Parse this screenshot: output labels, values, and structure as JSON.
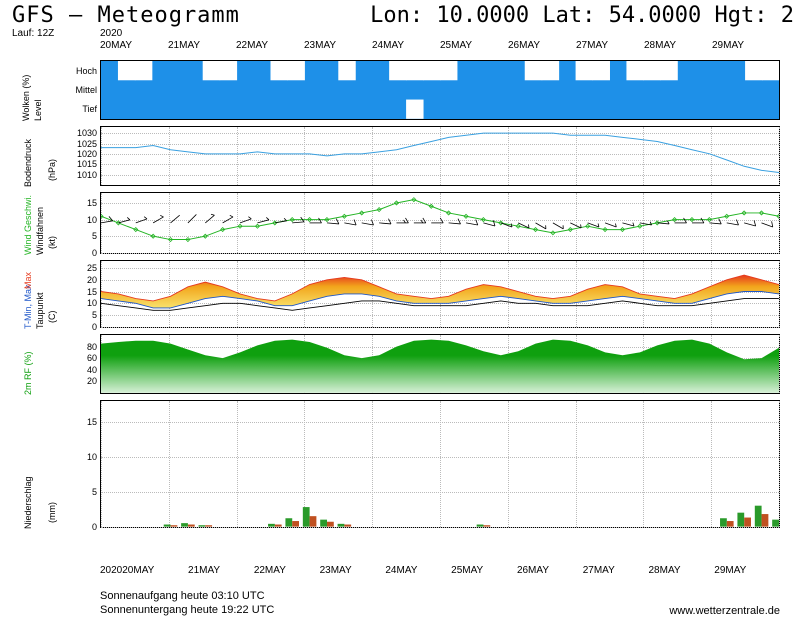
{
  "header": {
    "title": "GFS – Meteogramm",
    "coords": "Lon: 10.0000 Lat: 54.0000 Hgt: 2",
    "run": "Lauf: 12Z"
  },
  "year": "2020",
  "dates": [
    "20MAY",
    "21MAY",
    "22MAY",
    "23MAY",
    "24MAY",
    "25MAY",
    "26MAY",
    "27MAY",
    "28MAY",
    "29MAY"
  ],
  "footer": {
    "sunrise": "Sonnenaufgang heute 03:10 UTC",
    "sunset": "Sonnenuntergang heute 19:22 UTC",
    "credit": "www.wetterzentrale.de"
  },
  "styling": {
    "bg": "#ffffff",
    "grid": "#bbbbbb",
    "axis": "#000000",
    "cloud_bg": "#1e90e8",
    "cloud_fg": "#ffffff",
    "pressure_line": "#3aa0e0",
    "wind_line": "#22b422",
    "wind_barb": "#000000",
    "temp_max": "#e63a1e",
    "temp_min": "#1e56c8",
    "temp_line": "#000000",
    "temp_fill_top": "#f2a61c",
    "temp_fill_bot": "#f9e26b",
    "rh_fill_dark": "#0fa00f",
    "rh_fill_light": "#d6f0d6",
    "precip_bar1": "#c05020",
    "precip_bar2": "#2a9a2a",
    "tick_font": 9,
    "label_font": 9
  },
  "panels": {
    "clouds": {
      "type": "heatmap",
      "levels": [
        "Hoch",
        "Mittel",
        "Tief"
      ],
      "ylabel_outer": "Wolken (%)",
      "ylabel_inner": "Level",
      "data": [
        [
          90,
          60,
          40,
          70,
          95,
          80,
          30,
          50,
          85,
          95,
          40,
          60,
          80,
          70,
          55,
          85,
          70,
          40,
          30,
          60,
          55,
          70,
          85,
          95,
          70,
          40,
          55,
          85,
          65,
          55,
          70,
          40,
          30,
          50,
          70,
          85,
          95,
          80,
          60,
          40
        ],
        [
          95,
          95,
          90,
          95,
          95,
          90,
          80,
          85,
          95,
          95,
          95,
          95,
          95,
          95,
          80,
          95,
          95,
          85,
          70,
          90,
          95,
          95,
          95,
          95,
          95,
          85,
          95,
          95,
          95,
          90,
          95,
          75,
          80,
          85,
          90,
          95,
          95,
          95,
          85,
          80
        ],
        [
          95,
          95,
          95,
          95,
          95,
          95,
          90,
          95,
          95,
          95,
          80,
          90,
          95,
          95,
          95,
          95,
          95,
          80,
          50,
          95,
          95,
          95,
          95,
          95,
          95,
          95,
          95,
          95,
          95,
          95,
          95,
          95,
          95,
          95,
          95,
          95,
          95,
          95,
          95,
          95
        ]
      ]
    },
    "pressure": {
      "type": "line",
      "ylabel": "Bodendruck",
      "unit": "(hPa)",
      "ylim": [
        1005,
        1033
      ],
      "yticks": [
        1010,
        1015,
        1020,
        1025,
        1030
      ],
      "values": [
        1023,
        1023,
        1023,
        1024,
        1022,
        1021,
        1020,
        1020,
        1020,
        1021,
        1020,
        1020,
        1020,
        1019,
        1020,
        1020,
        1021,
        1022,
        1024,
        1026,
        1028,
        1029,
        1030,
        1030,
        1030,
        1030,
        1030,
        1029,
        1029,
        1029,
        1028,
        1027,
        1026,
        1024,
        1022,
        1020,
        1017,
        1014,
        1012,
        1011
      ]
    },
    "wind": {
      "type": "line+barbs",
      "ylabel_outer": "Wind Geschwi.",
      "ylabel_inner": "Windfahnen",
      "unit": "(kt)",
      "ylim": [
        0,
        18
      ],
      "yticks": [
        0,
        5,
        10,
        15
      ],
      "speed": [
        11,
        9,
        7,
        5,
        4,
        4,
        5,
        7,
        8,
        8,
        9,
        10,
        10,
        10,
        11,
        12,
        13,
        15,
        16,
        14,
        12,
        11,
        10,
        9,
        8,
        7,
        6,
        7,
        8,
        7,
        7,
        8,
        9,
        10,
        10,
        10,
        11,
        12,
        12,
        11
      ],
      "barb_dir": [
        260,
        255,
        250,
        240,
        230,
        225,
        230,
        240,
        250,
        255,
        260,
        265,
        270,
        275,
        280,
        280,
        275,
        270,
        270,
        270,
        275,
        280,
        285,
        290,
        295,
        300,
        300,
        295,
        290,
        290,
        285,
        280,
        275,
        270,
        270,
        275,
        280,
        285,
        290,
        290
      ]
    },
    "temp": {
      "type": "range",
      "ylabel_outer": "T-Min, Max",
      "ylabel_inner": "Taupunkt",
      "unit": "(C)",
      "ylim": [
        0,
        28
      ],
      "yticks": [
        0,
        5,
        10,
        15,
        20,
        25
      ],
      "tmax": [
        15,
        14,
        12,
        11,
        13,
        17,
        19,
        17,
        14,
        12,
        11,
        14,
        18,
        20,
        21,
        20,
        17,
        14,
        13,
        12,
        13,
        16,
        18,
        17,
        15,
        13,
        12,
        13,
        16,
        18,
        17,
        14,
        13,
        12,
        14,
        17,
        20,
        22,
        20,
        18
      ],
      "tmin": [
        12,
        11,
        10,
        8,
        8,
        10,
        12,
        13,
        12,
        11,
        9,
        9,
        11,
        13,
        14,
        14,
        13,
        11,
        10,
        10,
        10,
        11,
        12,
        13,
        12,
        11,
        10,
        10,
        11,
        12,
        13,
        12,
        11,
        10,
        10,
        12,
        14,
        15,
        15,
        14
      ],
      "dew": [
        10,
        9,
        8,
        7,
        7,
        8,
        9,
        10,
        10,
        9,
        8,
        7,
        8,
        9,
        10,
        11,
        11,
        10,
        9,
        9,
        9,
        9,
        10,
        11,
        10,
        10,
        9,
        9,
        9,
        10,
        11,
        10,
        9,
        9,
        9,
        10,
        11,
        12,
        12,
        12
      ]
    },
    "rh": {
      "type": "area",
      "ylabel": "2m RF (%)",
      "unit": "",
      "ylim": [
        0,
        100
      ],
      "yticks": [
        20,
        40,
        60,
        80
      ],
      "values": [
        85,
        88,
        90,
        90,
        85,
        75,
        65,
        60,
        70,
        82,
        90,
        92,
        88,
        78,
        65,
        60,
        65,
        80,
        90,
        92,
        90,
        82,
        72,
        65,
        72,
        85,
        92,
        90,
        82,
        70,
        65,
        70,
        82,
        90,
        92,
        85,
        70,
        58,
        60,
        78
      ]
    },
    "precip": {
      "type": "bar",
      "ylabel": "Niederschlag",
      "unit": "(mm)",
      "ylim": [
        0,
        18
      ],
      "yticks": [
        0,
        5,
        10,
        15
      ],
      "values_a": [
        0,
        0,
        0,
        0,
        0.3,
        0.5,
        0.2,
        0,
        0,
        0,
        0.4,
        1.2,
        2.8,
        1.0,
        0.4,
        0,
        0,
        0,
        0,
        0,
        0,
        0,
        0.3,
        0,
        0,
        0,
        0,
        0,
        0,
        0,
        0,
        0,
        0,
        0,
        0,
        0,
        1.2,
        2.0,
        3.0,
        1.0
      ],
      "values_b": [
        0,
        0,
        0,
        0,
        0.2,
        0.3,
        0.2,
        0,
        0,
        0,
        0.3,
        0.8,
        1.5,
        0.7,
        0.3,
        0,
        0,
        0,
        0,
        0,
        0,
        0,
        0.2,
        0,
        0,
        0,
        0,
        0,
        0,
        0,
        0,
        0,
        0,
        0,
        0,
        0,
        0.8,
        1.3,
        1.8,
        0.7
      ]
    }
  }
}
